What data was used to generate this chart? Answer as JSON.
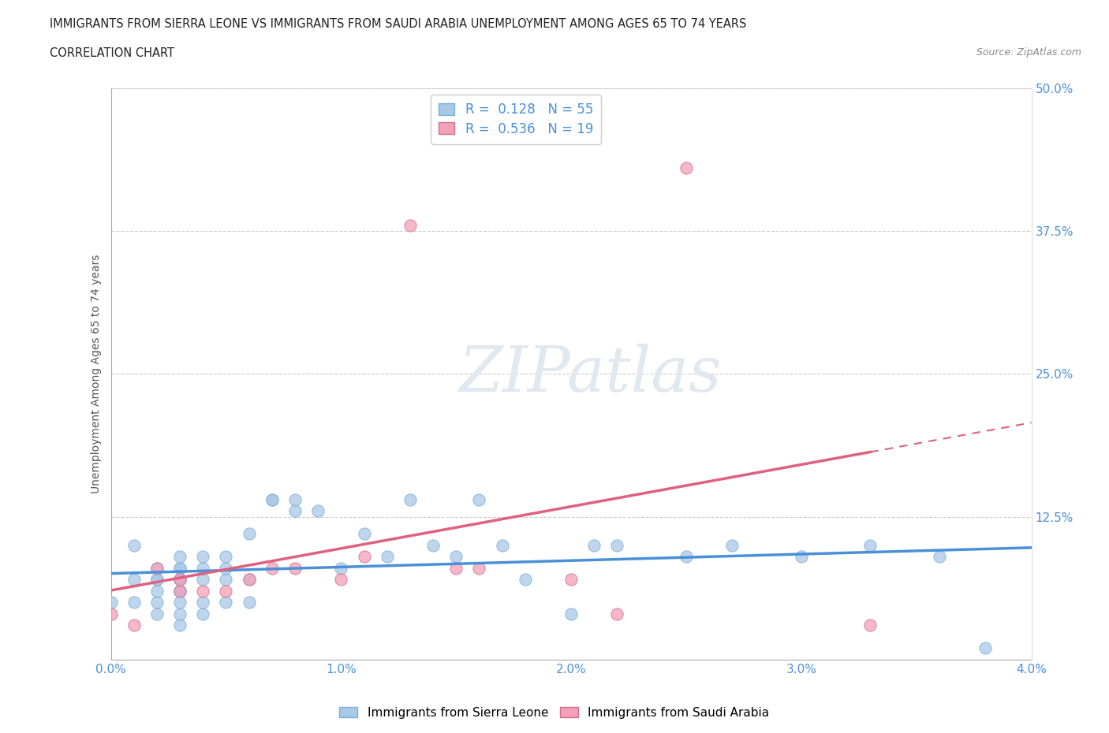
{
  "title_line1": "IMMIGRANTS FROM SIERRA LEONE VS IMMIGRANTS FROM SAUDI ARABIA UNEMPLOYMENT AMONG AGES 65 TO 74 YEARS",
  "title_line2": "CORRELATION CHART",
  "source": "Source: ZipAtlas.com",
  "ylabel": "Unemployment Among Ages 65 to 74 years",
  "xlim": [
    0.0,
    0.04
  ],
  "ylim": [
    0.0,
    0.5
  ],
  "xticks": [
    0.0,
    0.01,
    0.02,
    0.03,
    0.04
  ],
  "yticks": [
    0.0,
    0.125,
    0.25,
    0.375,
    0.5
  ],
  "xtick_labels": [
    "0.0%",
    "1.0%",
    "2.0%",
    "3.0%",
    "4.0%"
  ],
  "ytick_labels": [
    "",
    "12.5%",
    "25.0%",
    "37.5%",
    "50.0%"
  ],
  "sierra_leone_R": 0.128,
  "sierra_leone_N": 55,
  "saudi_arabia_R": 0.536,
  "saudi_arabia_N": 19,
  "color_sierra_leone": "#a8c8e8",
  "color_saudi_arabia": "#f4a0b8",
  "color_sierra_leone_line": "#4a90d9",
  "color_saudi_arabia_line": "#e06080",
  "sierra_leone_x": [
    0.0,
    0.001,
    0.001,
    0.001,
    0.002,
    0.002,
    0.002,
    0.002,
    0.002,
    0.002,
    0.003,
    0.003,
    0.003,
    0.003,
    0.003,
    0.003,
    0.003,
    0.003,
    0.003,
    0.003,
    0.004,
    0.004,
    0.004,
    0.004,
    0.004,
    0.005,
    0.005,
    0.005,
    0.005,
    0.006,
    0.006,
    0.006,
    0.007,
    0.007,
    0.008,
    0.008,
    0.009,
    0.01,
    0.011,
    0.012,
    0.013,
    0.014,
    0.015,
    0.016,
    0.017,
    0.018,
    0.02,
    0.021,
    0.022,
    0.025,
    0.027,
    0.03,
    0.033,
    0.036,
    0.038
  ],
  "sierra_leone_y": [
    0.05,
    0.05,
    0.07,
    0.1,
    0.04,
    0.05,
    0.06,
    0.07,
    0.07,
    0.08,
    0.03,
    0.04,
    0.05,
    0.06,
    0.06,
    0.07,
    0.07,
    0.08,
    0.08,
    0.09,
    0.04,
    0.05,
    0.07,
    0.08,
    0.09,
    0.05,
    0.07,
    0.08,
    0.09,
    0.05,
    0.07,
    0.11,
    0.14,
    0.14,
    0.13,
    0.14,
    0.13,
    0.08,
    0.11,
    0.09,
    0.14,
    0.1,
    0.09,
    0.14,
    0.1,
    0.07,
    0.04,
    0.1,
    0.1,
    0.09,
    0.1,
    0.09,
    0.1,
    0.09,
    0.01
  ],
  "saudi_arabia_x": [
    0.0,
    0.001,
    0.002,
    0.003,
    0.003,
    0.004,
    0.005,
    0.006,
    0.007,
    0.008,
    0.01,
    0.011,
    0.013,
    0.015,
    0.016,
    0.02,
    0.022,
    0.025,
    0.033
  ],
  "saudi_arabia_y": [
    0.04,
    0.03,
    0.08,
    0.06,
    0.07,
    0.06,
    0.06,
    0.07,
    0.08,
    0.08,
    0.07,
    0.09,
    0.38,
    0.08,
    0.08,
    0.07,
    0.04,
    0.43,
    0.03
  ]
}
